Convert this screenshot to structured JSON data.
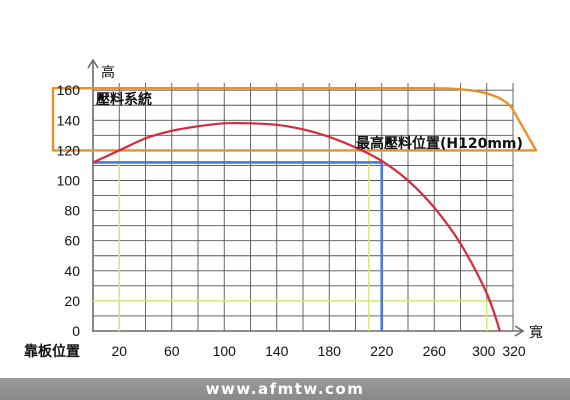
{
  "chart_data": {
    "type": "line",
    "y_axis_label": "高",
    "x_axis_label": "寬",
    "x_origin_label": "靠板位置",
    "xlim": [
      0,
      320
    ],
    "ylim": [
      0,
      170
    ],
    "x_ticks": [
      "20",
      "60",
      "100",
      "140",
      "180",
      "220",
      "260",
      "300",
      "320"
    ],
    "y_ticks": [
      "0",
      "20",
      "40",
      "60",
      "80",
      "100",
      "120",
      "140",
      "160"
    ],
    "grid": true,
    "curve": {
      "color": "#d8283c",
      "x": [
        0,
        20,
        40,
        60,
        80,
        100,
        120,
        140,
        160,
        180,
        200,
        220,
        240,
        260,
        280,
        300,
        310
      ],
      "y": [
        112,
        120,
        128,
        133,
        136,
        138,
        138,
        137,
        134,
        129,
        122,
        113,
        100,
        82,
        58,
        25,
        0
      ]
    },
    "blue_lines": {
      "color": "#4a78dd",
      "y": 112,
      "x": 220
    },
    "yellow_lines": {
      "color": "#d8e67a",
      "x_left": 20,
      "x_right": 210,
      "y_top": 120,
      "y_bottom": 20,
      "x_bottom": 300
    },
    "pressure_box": {
      "color": "#e8912a",
      "label": "壓料系統",
      "y_top": 160,
      "y_bottom": 120
    },
    "max_height_label": "最高壓料位置(H120mm)"
  },
  "footer": {
    "website": "www.afmtw.com"
  }
}
